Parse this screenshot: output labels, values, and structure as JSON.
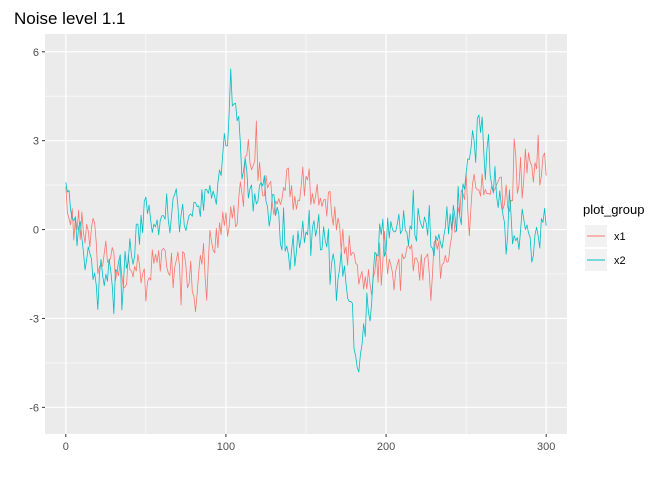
{
  "chart_data": {
    "type": "line",
    "title": "Noise level 1.1",
    "xlabel": "",
    "ylabel": "",
    "xlim": [
      -13,
      313
    ],
    "ylim": [
      -6.9,
      6.6
    ],
    "x_ticks": [
      0,
      100,
      200,
      300
    ],
    "y_ticks": [
      -6,
      -3,
      0,
      3,
      6
    ],
    "grid": true,
    "legend": {
      "title": "plot_group",
      "position": "right"
    },
    "n_points": 301,
    "series": [
      {
        "name": "x1",
        "color": "#F8766D",
        "anchors": [
          [
            0,
            1.0
          ],
          [
            3,
            0.8
          ],
          [
            8,
            0.3
          ],
          [
            15,
            -0.3
          ],
          [
            22,
            -0.8
          ],
          [
            30,
            -1.2
          ],
          [
            38,
            -1.5
          ],
          [
            45,
            -1.6
          ],
          [
            52,
            -1.3
          ],
          [
            60,
            -1.0
          ],
          [
            68,
            -1.2
          ],
          [
            75,
            -1.5
          ],
          [
            80,
            -2.2
          ],
          [
            85,
            -1.6
          ],
          [
            90,
            -1.0
          ],
          [
            95,
            -0.2
          ],
          [
            100,
            0.4
          ],
          [
            105,
            0.6
          ],
          [
            110,
            1.5
          ],
          [
            115,
            2.1
          ],
          [
            120,
            2.5
          ],
          [
            125,
            1.5
          ],
          [
            130,
            0.9
          ],
          [
            135,
            0.8
          ],
          [
            140,
            1.0
          ],
          [
            145,
            1.4
          ],
          [
            150,
            1.5
          ],
          [
            155,
            1.3
          ],
          [
            160,
            1.1
          ],
          [
            165,
            0.6
          ],
          [
            170,
            0.1
          ],
          [
            175,
            -0.5
          ],
          [
            180,
            -1.0
          ],
          [
            185,
            -1.5
          ],
          [
            190,
            -1.5
          ],
          [
            195,
            -1.3
          ],
          [
            200,
            -1.0
          ],
          [
            205,
            -1.3
          ],
          [
            210,
            -1.0
          ],
          [
            215,
            -1.1
          ],
          [
            220,
            -1.2
          ],
          [
            225,
            -1.0
          ],
          [
            230,
            -1.4
          ],
          [
            235,
            -1.3
          ],
          [
            240,
            -0.5
          ],
          [
            245,
            0.5
          ],
          [
            250,
            1.0
          ],
          [
            255,
            1.2
          ],
          [
            260,
            1.5
          ],
          [
            265,
            1.8
          ],
          [
            270,
            1.4
          ],
          [
            275,
            1.2
          ],
          [
            280,
            1.6
          ],
          [
            285,
            2.3
          ],
          [
            290,
            2.5
          ],
          [
            295,
            1.9
          ],
          [
            300,
            2.0
          ]
        ]
      },
      {
        "name": "x2",
        "color": "#00BFC4",
        "anchors": [
          [
            0,
            1.4
          ],
          [
            3,
            0.8
          ],
          [
            8,
            0.0
          ],
          [
            12,
            -1.0
          ],
          [
            18,
            -1.2
          ],
          [
            25,
            -1.4
          ],
          [
            30,
            -1.9
          ],
          [
            35,
            -1.5
          ],
          [
            40,
            -0.6
          ],
          [
            45,
            -0.2
          ],
          [
            50,
            0.4
          ],
          [
            55,
            0.6
          ],
          [
            60,
            0.7
          ],
          [
            65,
            0.5
          ],
          [
            70,
            0.3
          ],
          [
            75,
            0.6
          ],
          [
            80,
            0.5
          ],
          [
            85,
            0.9
          ],
          [
            90,
            1.4
          ],
          [
            95,
            1.6
          ],
          [
            100,
            3.2
          ],
          [
            103,
            4.6
          ],
          [
            107,
            4.1
          ],
          [
            112,
            2.0
          ],
          [
            118,
            1.2
          ],
          [
            125,
            0.9
          ],
          [
            130,
            0.4
          ],
          [
            135,
            -0.6
          ],
          [
            140,
            -0.5
          ],
          [
            145,
            -0.2
          ],
          [
            150,
            0.1
          ],
          [
            155,
            0.0
          ],
          [
            160,
            -0.2
          ],
          [
            165,
            -0.8
          ],
          [
            170,
            -1.4
          ],
          [
            175,
            -2.0
          ],
          [
            180,
            -3.7
          ],
          [
            183,
            -4.6
          ],
          [
            186,
            -3.3
          ],
          [
            190,
            -1.8
          ],
          [
            195,
            -0.8
          ],
          [
            200,
            -0.4
          ],
          [
            205,
            0.1
          ],
          [
            210,
            0.4
          ],
          [
            215,
            0.3
          ],
          [
            220,
            0.5
          ],
          [
            225,
            0.2
          ],
          [
            230,
            -0.1
          ],
          [
            235,
            0.0
          ],
          [
            240,
            0.2
          ],
          [
            245,
            0.5
          ],
          [
            250,
            1.6
          ],
          [
            255,
            3.2
          ],
          [
            258,
            3.5
          ],
          [
            262,
            2.6
          ],
          [
            267,
            1.5
          ],
          [
            272,
            0.8
          ],
          [
            277,
            0.2
          ],
          [
            282,
            -0.3
          ],
          [
            287,
            -0.5
          ],
          [
            292,
            -0.2
          ],
          [
            296,
            0.1
          ],
          [
            300,
            0.5
          ]
        ]
      }
    ]
  }
}
